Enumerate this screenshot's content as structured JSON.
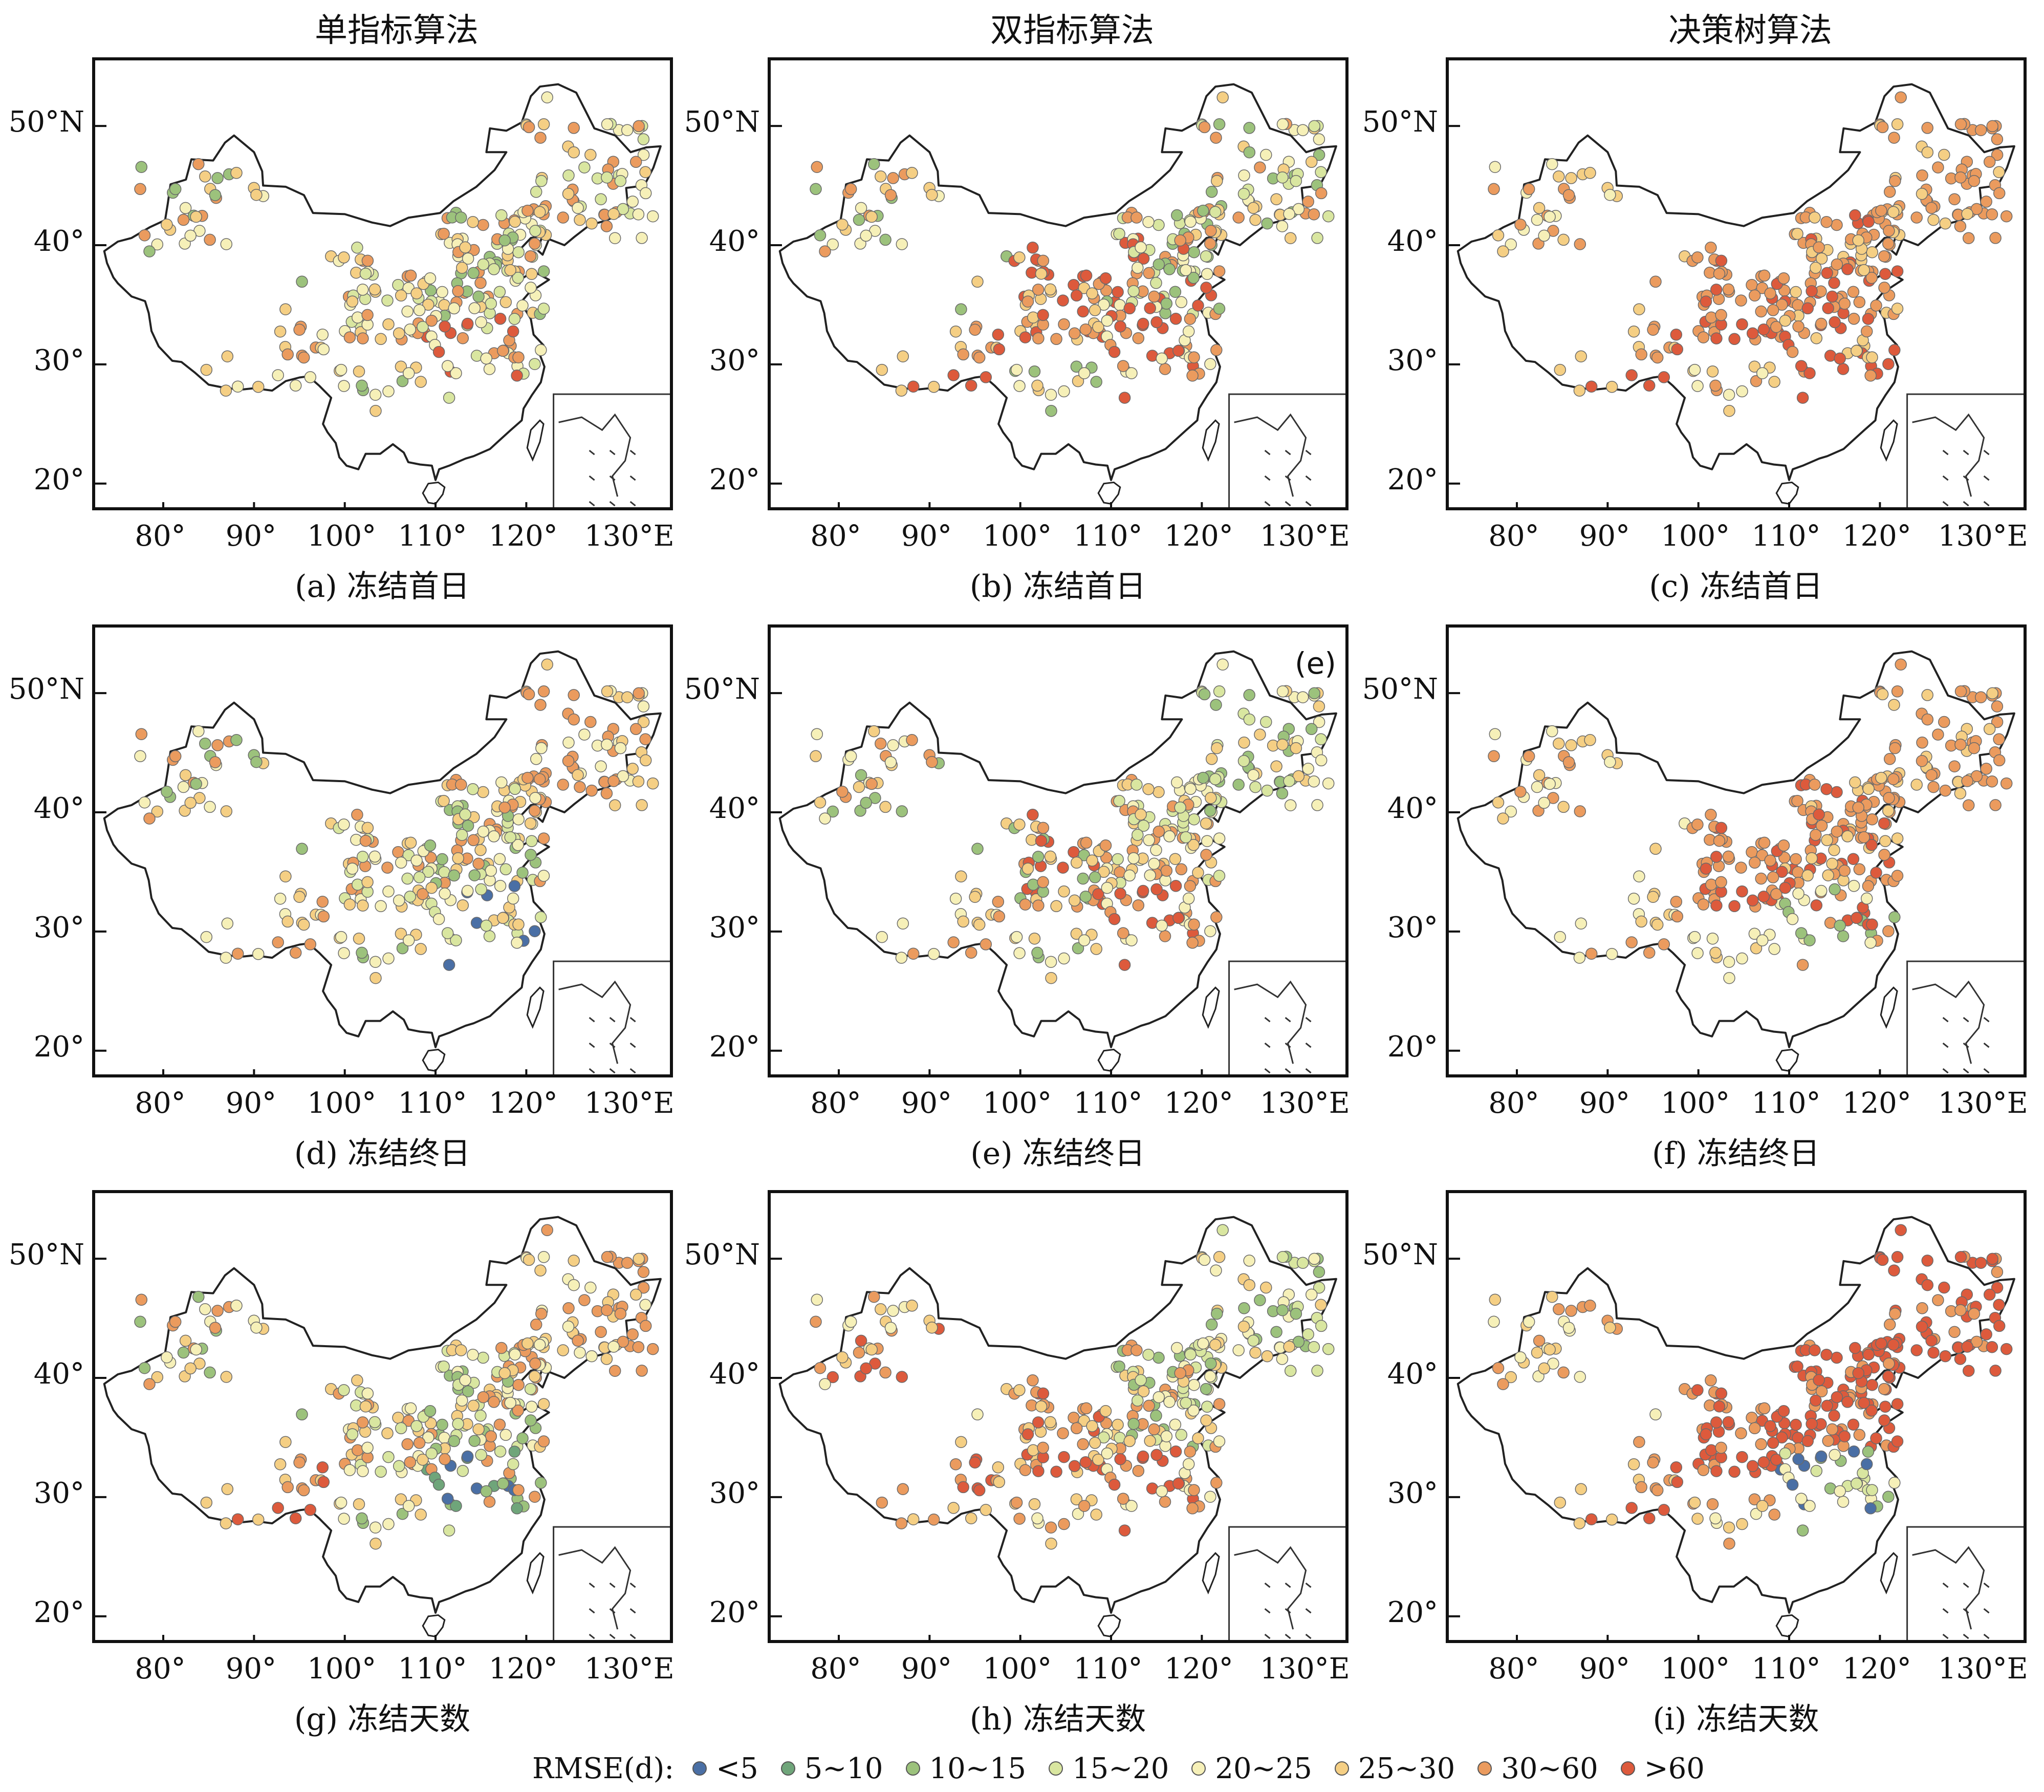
{
  "column_titles": [
    "单指标算法",
    "双指标算法",
    "决策树算法"
  ],
  "y_ticks": [
    "50°N",
    "40°",
    "30°",
    "20°"
  ],
  "x_ticks": [
    "80°",
    "90°",
    "100°",
    "110°",
    "120°",
    "130°E"
  ],
  "panels": [
    {
      "caption": "(a) 冻结首日",
      "corner": "",
      "palette": "mixed_a"
    },
    {
      "caption": "(b) 冻结首日",
      "corner": "",
      "palette": "mixed_b"
    },
    {
      "caption": "(c) 冻结首日",
      "corner": "",
      "palette": "warm_c"
    },
    {
      "caption": "(d) 冻结终日",
      "corner": "",
      "palette": "mixed_d"
    },
    {
      "caption": "(e) 冻结终日",
      "corner": "(e)",
      "palette": "mixed_e"
    },
    {
      "caption": "(f) 冻结终日",
      "corner": "",
      "palette": "warm_f"
    },
    {
      "caption": "(g) 冻结天数",
      "corner": "",
      "palette": "mixed_g"
    },
    {
      "caption": "(h) 冻结天数",
      "corner": "",
      "palette": "mixed_h"
    },
    {
      "caption": "(i) 冻结天数",
      "corner": "",
      "palette": "hot_i"
    }
  ],
  "legend": {
    "title": "RMSE(d):",
    "items": [
      {
        "label": "<5",
        "color": "#4a6fa5"
      },
      {
        "label": "5~10",
        "color": "#6fa57a"
      },
      {
        "label": "10~15",
        "color": "#9cc27c"
      },
      {
        "label": "15~20",
        "color": "#d9e6a0"
      },
      {
        "label": "20~25",
        "color": "#f6f0b8"
      },
      {
        "label": "25~30",
        "color": "#f5cf84"
      },
      {
        "label": "30~60",
        "color": "#eb9b5e"
      },
      {
        "label": ">60",
        "color": "#dd5a3c"
      }
    ]
  }
}
